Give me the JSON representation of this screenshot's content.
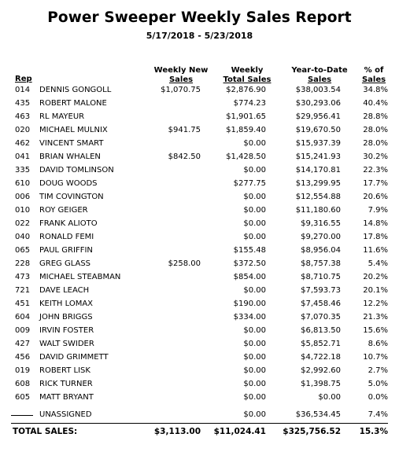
{
  "report": {
    "title": "Power Sweeper Weekly Sales Report",
    "date_range": "5/17/2018 - 5/23/2018"
  },
  "headers": {
    "rep": "Rep",
    "weekly_new_line1": "Weekly New",
    "weekly_new_line2": "Sales",
    "weekly_total_line1": "Weekly",
    "weekly_total_line2": "Total Sales",
    "ytd_line1": "Year-to-Date",
    "ytd_line2": "Sales",
    "pct_line1": "% of",
    "pct_line2": "Sales"
  },
  "rows": [
    {
      "rep": "014",
      "name": "DENNIS GONGOLL",
      "weekly_new": "$1,070.75",
      "weekly_total": "$2,876.90",
      "ytd": "$38,003.54",
      "pct": "34.8%"
    },
    {
      "rep": "435",
      "name": "ROBERT MALONE",
      "weekly_new": "",
      "weekly_total": "$774.23",
      "ytd": "$30,293.06",
      "pct": "40.4%"
    },
    {
      "rep": "463",
      "name": "RL MAYEUR",
      "weekly_new": "",
      "weekly_total": "$1,901.65",
      "ytd": "$29,956.41",
      "pct": "28.8%"
    },
    {
      "rep": "020",
      "name": "MICHAEL MULNIX",
      "weekly_new": "$941.75",
      "weekly_total": "$1,859.40",
      "ytd": "$19,670.50",
      "pct": "28.0%"
    },
    {
      "rep": "462",
      "name": "VINCENT SMART",
      "weekly_new": "",
      "weekly_total": "$0.00",
      "ytd": "$15,937.39",
      "pct": "28.0%"
    },
    {
      "rep": "041",
      "name": "BRIAN WHALEN",
      "weekly_new": "$842.50",
      "weekly_total": "$1,428.50",
      "ytd": "$15,241.93",
      "pct": "30.2%"
    },
    {
      "rep": "335",
      "name": "DAVID TOMLINSON",
      "weekly_new": "",
      "weekly_total": "$0.00",
      "ytd": "$14,170.81",
      "pct": "22.3%"
    },
    {
      "rep": "610",
      "name": "DOUG WOODS",
      "weekly_new": "",
      "weekly_total": "$277.75",
      "ytd": "$13,299.95",
      "pct": "17.7%"
    },
    {
      "rep": "006",
      "name": "TIM COVINGTON",
      "weekly_new": "",
      "weekly_total": "$0.00",
      "ytd": "$12,554.88",
      "pct": "20.6%"
    },
    {
      "rep": "010",
      "name": "ROY GEIGER",
      "weekly_new": "",
      "weekly_total": "$0.00",
      "ytd": "$11,180.60",
      "pct": "7.9%"
    },
    {
      "rep": "022",
      "name": "FRANK ALIOTO",
      "weekly_new": "",
      "weekly_total": "$0.00",
      "ytd": "$9,316.55",
      "pct": "14.8%"
    },
    {
      "rep": "040",
      "name": "RONALD FEMI",
      "weekly_new": "",
      "weekly_total": "$0.00",
      "ytd": "$9,270.00",
      "pct": "17.8%"
    },
    {
      "rep": "065",
      "name": "PAUL GRIFFIN",
      "weekly_new": "",
      "weekly_total": "$155.48",
      "ytd": "$8,956.04",
      "pct": "11.6%"
    },
    {
      "rep": "228",
      "name": "GREG GLASS",
      "weekly_new": "$258.00",
      "weekly_total": "$372.50",
      "ytd": "$8,757.38",
      "pct": "5.4%"
    },
    {
      "rep": "473",
      "name": "MICHAEL STEABMAN",
      "weekly_new": "",
      "weekly_total": "$854.00",
      "ytd": "$8,710.75",
      "pct": "20.2%"
    },
    {
      "rep": "721",
      "name": "DAVE LEACH",
      "weekly_new": "",
      "weekly_total": "$0.00",
      "ytd": "$7,593.73",
      "pct": "20.1%"
    },
    {
      "rep": "451",
      "name": "KEITH LOMAX",
      "weekly_new": "",
      "weekly_total": "$190.00",
      "ytd": "$7,458.46",
      "pct": "12.2%"
    },
    {
      "rep": "604",
      "name": "JOHN BRIGGS",
      "weekly_new": "",
      "weekly_total": "$334.00",
      "ytd": "$7,070.35",
      "pct": "21.3%"
    },
    {
      "rep": "009",
      "name": "IRVIN FOSTER",
      "weekly_new": "",
      "weekly_total": "$0.00",
      "ytd": "$6,813.50",
      "pct": "15.6%"
    },
    {
      "rep": "427",
      "name": "WALT SWIDER",
      "weekly_new": "",
      "weekly_total": "$0.00",
      "ytd": "$5,852.71",
      "pct": "8.6%"
    },
    {
      "rep": "456",
      "name": "DAVID GRIMMETT",
      "weekly_new": "",
      "weekly_total": "$0.00",
      "ytd": "$4,722.18",
      "pct": "10.7%"
    },
    {
      "rep": "019",
      "name": "ROBERT LISK",
      "weekly_new": "",
      "weekly_total": "$0.00",
      "ytd": "$2,992.60",
      "pct": "2.7%"
    },
    {
      "rep": "608",
      "name": "RICK TURNER",
      "weekly_new": "",
      "weekly_total": "$0.00",
      "ytd": "$1,398.75",
      "pct": "5.0%"
    },
    {
      "rep": "605",
      "name": "MATT BRYANT",
      "weekly_new": "",
      "weekly_total": "$0.00",
      "ytd": "$0.00",
      "pct": "0.0%"
    }
  ],
  "unassigned": {
    "name": "UNASSIGNED",
    "weekly_total": "$0.00",
    "ytd": "$36,534.45",
    "pct": "7.4%"
  },
  "totals": {
    "label": "TOTAL SALES:",
    "weekly_new": "$3,113.00",
    "weekly_total": "$11,024.41",
    "ytd": "$325,756.52",
    "pct": "15.3%"
  }
}
